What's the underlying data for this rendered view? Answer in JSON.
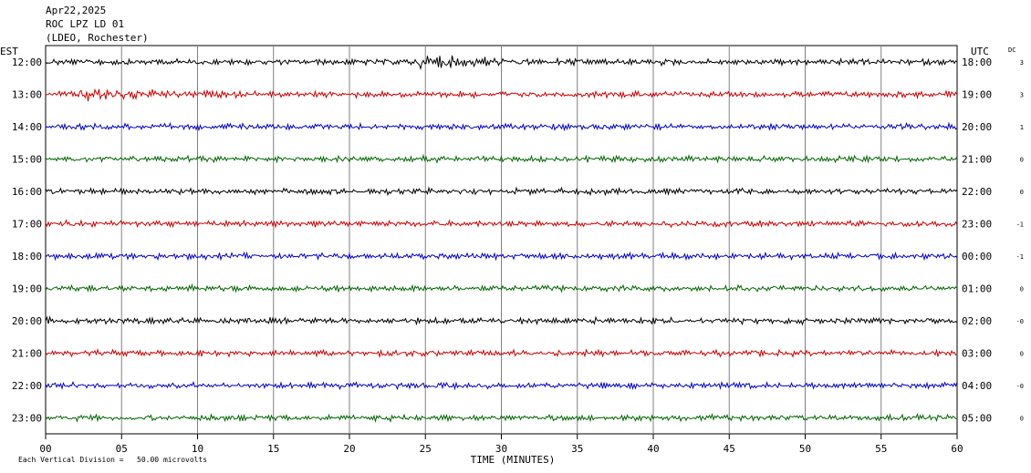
{
  "header": {
    "date": "Apr22,2025",
    "station": "ROC LPZ LD 01",
    "network": "(LDEO, Rochester)"
  },
  "chart_data": {
    "type": "line",
    "title": "ROC LPZ LD 01",
    "xlabel": "TIME (MINUTES)",
    "left_axis_label": "EST",
    "right_axis_label": "UTC",
    "dc_label": "DC",
    "xlim": [
      0,
      60
    ],
    "x_ticks": [
      "00",
      "05",
      "10",
      "15",
      "20",
      "25",
      "30",
      "35",
      "40",
      "45",
      "50",
      "55",
      "60"
    ],
    "grid": true,
    "trace_colors": [
      "#000000",
      "#cc0000",
      "#0000cc",
      "#006600"
    ],
    "rows": [
      {
        "est": "12:00",
        "utc": "18:00",
        "dc": "3"
      },
      {
        "est": "13:00",
        "utc": "19:00",
        "dc": "3"
      },
      {
        "est": "14:00",
        "utc": "20:00",
        "dc": "1"
      },
      {
        "est": "15:00",
        "utc": "21:00",
        "dc": "0"
      },
      {
        "est": "16:00",
        "utc": "22:00",
        "dc": "0"
      },
      {
        "est": "17:00",
        "utc": "23:00",
        "dc": "-1"
      },
      {
        "est": "18:00",
        "utc": "00:00",
        "dc": "-1"
      },
      {
        "est": "19:00",
        "utc": "01:00",
        "dc": "0"
      },
      {
        "est": "20:00",
        "utc": "02:00",
        "dc": "-0"
      },
      {
        "est": "21:00",
        "utc": "03:00",
        "dc": "0"
      },
      {
        "est": "22:00",
        "utc": "04:00",
        "dc": "-0"
      },
      {
        "est": "23:00",
        "utc": "05:00",
        "dc": "0"
      }
    ],
    "events": [
      {
        "row": 0,
        "minute": 24.7,
        "label": ""
      },
      {
        "row": 1,
        "minute": 2.5,
        "label": ""
      }
    ],
    "footer_note": "Each Vertical Division =   50.00 microvolts"
  }
}
